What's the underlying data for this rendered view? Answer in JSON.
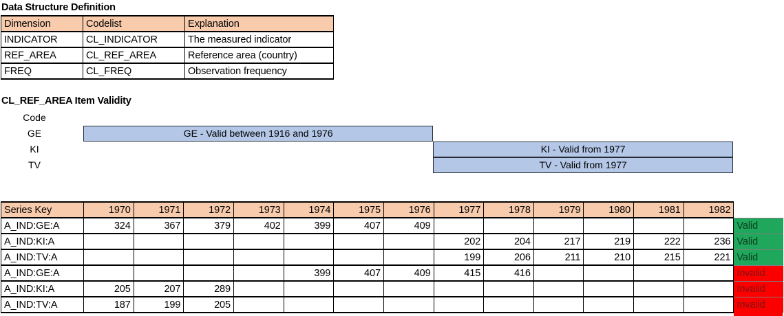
{
  "dsd": {
    "title": "Data Structure Definition",
    "columns": [
      "Dimension",
      "Codelist",
      "Explanation"
    ],
    "rows": [
      [
        "INDICATOR",
        "CL_INDICATOR",
        "The measured indicator"
      ],
      [
        "REF_AREA",
        "CL_REF_AREA",
        "Reference area (country)"
      ],
      [
        "FREQ",
        "CL_FREQ",
        "Observation frequency"
      ]
    ]
  },
  "validity": {
    "title": "CL_REF_AREA Item Validity",
    "code_header": "Code",
    "items": [
      {
        "code": "GE",
        "label": "GE - Valid between 1916 and 1976",
        "valid_from": 1916,
        "valid_to": 1976
      },
      {
        "code": "KI",
        "label": "KI - Valid from 1977",
        "valid_from": 1977,
        "valid_to": null
      },
      {
        "code": "TV",
        "label": "TV - Valid from 1977",
        "valid_from": 1977,
        "valid_to": null
      }
    ]
  },
  "series": {
    "key_header": "Series Key",
    "years": [
      "1970",
      "1971",
      "1972",
      "1973",
      "1974",
      "1975",
      "1976",
      "1977",
      "1978",
      "1979",
      "1980",
      "1981",
      "1982"
    ],
    "rows": [
      {
        "key": "A_IND:GE:A",
        "values": [
          "324",
          "367",
          "379",
          "402",
          "399",
          "407",
          "409",
          "",
          "",
          "",
          "",
          "",
          ""
        ],
        "status": "Valid"
      },
      {
        "key": "A_IND:KI:A",
        "values": [
          "",
          "",
          "",
          "",
          "",
          "",
          "",
          "202",
          "204",
          "217",
          "219",
          "222",
          "236"
        ],
        "status": "Valid"
      },
      {
        "key": "A_IND:TV:A",
        "values": [
          "",
          "",
          "",
          "",
          "",
          "",
          "",
          "199",
          "206",
          "211",
          "210",
          "215",
          "221"
        ],
        "status": "Valid"
      },
      {
        "key": "A_IND:GE:A",
        "values": [
          "",
          "",
          "",
          "",
          "399",
          "407",
          "409",
          "415",
          "416",
          "",
          "",
          "",
          ""
        ],
        "status": "Invalid"
      },
      {
        "key": "A_IND:KI:A",
        "values": [
          "205",
          "207",
          "289",
          "",
          "",
          "",
          "",
          "",
          "",
          "",
          "",
          "",
          ""
        ],
        "status": "Invalid"
      },
      {
        "key": "A_IND:TV:A",
        "values": [
          "187",
          "199",
          "205",
          "",
          "",
          "",
          "",
          "",
          "",
          "",
          "",
          "",
          ""
        ],
        "status": "Invalid"
      }
    ]
  },
  "colors": {
    "header_fill": "#F8CBAD",
    "bar_fill": "#B4C7E7",
    "bar_border": "#252B35",
    "valid_fill": "#1FA75C",
    "valid_text": "#0D3B1E",
    "invalid_fill": "#FC0000",
    "invalid_text": "#7A1512"
  }
}
